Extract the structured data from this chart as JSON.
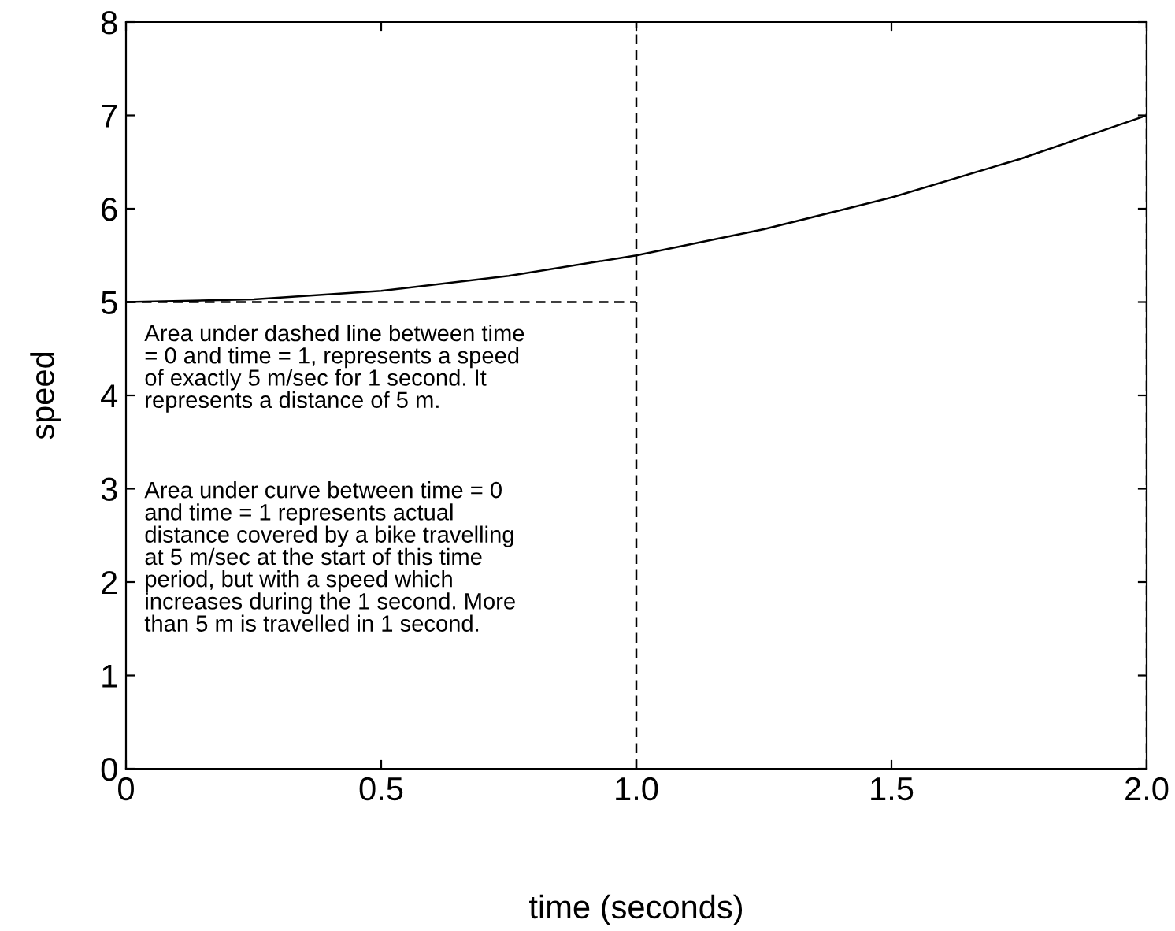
{
  "chart_data": {
    "type": "line",
    "xlabel": "time (seconds)",
    "ylabel": "speed",
    "xlim": [
      0,
      2
    ],
    "ylim": [
      0,
      8
    ],
    "xticks": [
      0,
      0.5,
      {
        "value": 1,
        "label": "1.0"
      },
      1.5,
      {
        "value": 2,
        "label": "2.0"
      }
    ],
    "yticks": [
      0,
      1,
      2,
      3,
      4,
      5,
      6,
      7,
      8
    ],
    "grid": false,
    "legend": false,
    "marker": "none",
    "series": [
      {
        "color": "#000000",
        "line_style": "solid",
        "x": [
          0,
          0.25,
          0.5,
          0.75,
          1,
          1.25,
          1.5,
          1.75,
          2
        ],
        "values": [
          5,
          5.03,
          5.12,
          5.28,
          5.5,
          5.78,
          6.12,
          6.53,
          7
        ]
      },
      {
        "color": "#000000",
        "line_style": "dashed",
        "x": [
          0,
          1
        ],
        "values": [
          5,
          5
        ]
      }
    ],
    "ref_lines": [
      {
        "axis": "x",
        "value": 1,
        "color": "#000000",
        "line_style": "dashed"
      },
      {
        "axis": "x",
        "value": 2,
        "color": "#000000",
        "line_style": "dashed"
      }
    ],
    "annotations": [
      "Area under dashed line between time\n= 0 and time = 1, represents a speed\nof exactly 5 m/sec for 1 second. It\nrepresents a distance of 5 m.",
      "Area under curve between time = 0\nand time = 1 represents actual\ndistance covered by a bike travelling\nat 5 m/sec at the start of this time\nperiod, but with a speed which\nincreases during the 1 second. More\nthan 5 m is travelled in 1 second."
    ]
  }
}
